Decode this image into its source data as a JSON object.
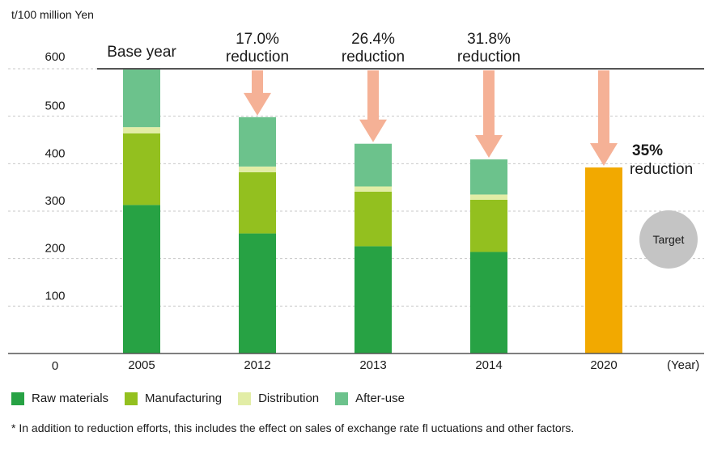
{
  "chart_data": {
    "type": "bar",
    "stacked": true,
    "unit_label": "t/100 million Yen",
    "categories": [
      "2005",
      "2012",
      "2013",
      "2014",
      "2020"
    ],
    "xlabel": "(Year)",
    "ylim": [
      0,
      600
    ],
    "yticks": [
      0,
      100,
      200,
      300,
      400,
      500,
      600
    ],
    "grid": true,
    "legend_position": "bottom",
    "series": [
      {
        "name": "Raw materials",
        "color": "#27a244",
        "values": [
          313,
          253,
          226,
          214,
          0
        ]
      },
      {
        "name": "Manufacturing",
        "color": "#93c01f",
        "values": [
          151,
          129,
          115,
          110,
          0
        ]
      },
      {
        "name": "Distribution",
        "color": "#e2eda6",
        "values": [
          13,
          12,
          11,
          11,
          0
        ]
      },
      {
        "name": "After-use",
        "color": "#6cc28c",
        "values": [
          123,
          104,
          90,
          74,
          0
        ]
      },
      {
        "name": "",
        "color": "#f2a900",
        "values": [
          0,
          0,
          0,
          0,
          392
        ]
      }
    ],
    "base_line_value": 600,
    "annotations": [
      {
        "category": "2005",
        "lines": [
          "Base year"
        ],
        "arrow": false
      },
      {
        "category": "2012",
        "lines": [
          "17.0%",
          "reduction"
        ],
        "arrow": true
      },
      {
        "category": "2013",
        "lines": [
          "26.4%",
          "reduction"
        ],
        "arrow": true
      },
      {
        "category": "2014",
        "lines": [
          "31.8%",
          "reduction"
        ],
        "arrow": true
      },
      {
        "category": "2020",
        "lines": [
          "35%",
          "reduction"
        ],
        "arrow": true,
        "side": "right"
      }
    ],
    "target_badge": "Target",
    "colors": {
      "arrow": "#f5b196",
      "grid": "#c8c8c8",
      "baseline": "#555555",
      "badge": "#c4c4c4"
    }
  },
  "footnote": "* In addition to reduction efforts, this includes the effect on sales of exchange rate fl uctuations and other factors."
}
